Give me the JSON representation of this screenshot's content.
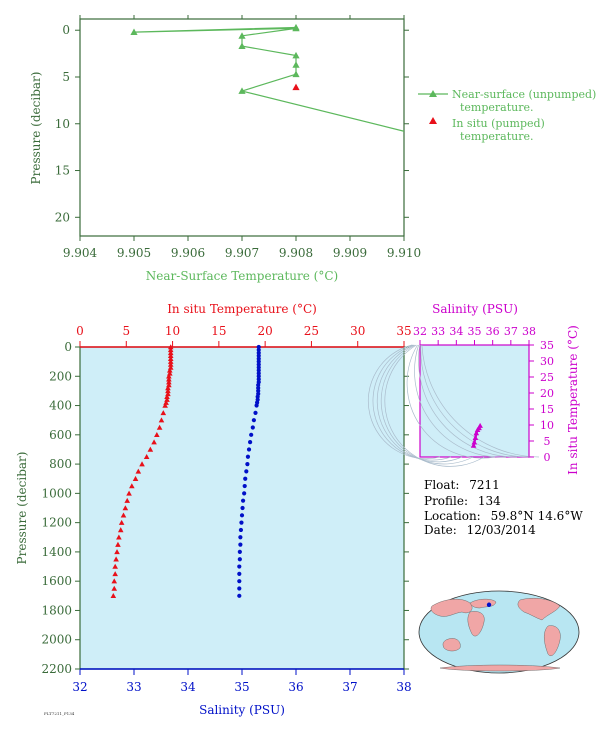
{
  "colors": {
    "near_surface": "#5cb85c",
    "axis_green": "#3a6b3a",
    "temperature": "#e8101a",
    "salinity": "#0010c8",
    "ts_magenta": "#cc00cc",
    "plot_bg": "#cfeef8"
  },
  "chart_data": [
    {
      "type": "line",
      "title": "",
      "xlabel": "Near-Surface Temperature (°C)",
      "ylabel": "Pressure (decibar)",
      "xlim": [
        9.904,
        9.91
      ],
      "ylim": [
        22,
        0
      ],
      "x_ticks": [
        "9.904",
        "9.905",
        "9.906",
        "9.907",
        "9.908",
        "9.909",
        "9.910"
      ],
      "y_ticks": [
        "0",
        "5",
        "10",
        "15",
        "20"
      ],
      "legend_position": "right",
      "series": [
        {
          "name": "Near-surface (unpumped) temperature.",
          "points": [
            [
              9.908,
              -0.3
            ],
            [
              9.905,
              0.2
            ],
            [
              9.908,
              -0.2
            ],
            [
              9.907,
              0.6
            ],
            [
              9.907,
              1.7
            ],
            [
              9.908,
              2.7
            ],
            [
              9.908,
              3.7
            ],
            [
              9.908,
              4.7
            ],
            [
              9.907,
              6.5
            ],
            [
              9.91,
              10.8
            ]
          ]
        },
        {
          "name": "In situ (pumped) temperature.",
          "points": [
            [
              9.908,
              6.1
            ]
          ]
        }
      ]
    },
    {
      "type": "scatter",
      "title": "",
      "xlabel_bottom": "Salinity (PSU)",
      "xlabel_top": "In situ Temperature (°C)",
      "ylabel": "Pressure (decibar)",
      "xlim_salinity": [
        32,
        38
      ],
      "xlim_temperature": [
        0,
        35
      ],
      "ylim": [
        2200,
        0
      ],
      "salinity_ticks": [
        "32",
        "33",
        "34",
        "35",
        "36",
        "37",
        "38"
      ],
      "temperature_ticks": [
        "0",
        "5",
        "10",
        "15",
        "20",
        "25",
        "30",
        "35"
      ],
      "pressure_ticks": [
        "0",
        "200",
        "400",
        "600",
        "800",
        "1000",
        "1200",
        "1400",
        "1600",
        "1800",
        "2000",
        "2200"
      ],
      "series": [
        {
          "name": "In situ Temperature",
          "pressure": [
            0,
            20,
            40,
            60,
            80,
            100,
            120,
            140,
            160,
            180,
            200,
            220,
            240,
            260,
            280,
            300,
            320,
            340,
            360,
            380,
            400,
            450,
            500,
            550,
            600,
            650,
            700,
            750,
            800,
            850,
            900,
            950,
            1000,
            1050,
            1100,
            1150,
            1200,
            1250,
            1300,
            1350,
            1400,
            1450,
            1500,
            1550,
            1600,
            1650,
            1700
          ],
          "values": [
            9.8,
            9.8,
            9.8,
            9.8,
            9.8,
            9.8,
            9.8,
            9.8,
            9.7,
            9.7,
            9.6,
            9.6,
            9.6,
            9.6,
            9.5,
            9.5,
            9.5,
            9.4,
            9.4,
            9.3,
            9.2,
            9.0,
            8.8,
            8.6,
            8.3,
            8.0,
            7.6,
            7.2,
            6.7,
            6.3,
            6.0,
            5.6,
            5.3,
            5.1,
            4.9,
            4.7,
            4.5,
            4.4,
            4.2,
            4.1,
            4.0,
            3.9,
            3.8,
            3.8,
            3.7,
            3.7,
            3.6
          ]
        },
        {
          "name": "Salinity",
          "pressure": [
            0,
            20,
            40,
            60,
            80,
            100,
            120,
            140,
            160,
            180,
            200,
            220,
            240,
            260,
            280,
            300,
            320,
            340,
            360,
            380,
            400,
            450,
            500,
            550,
            600,
            650,
            700,
            750,
            800,
            850,
            900,
            950,
            1000,
            1050,
            1100,
            1150,
            1200,
            1250,
            1300,
            1350,
            1400,
            1450,
            1500,
            1550,
            1600,
            1650,
            1700
          ],
          "values": [
            35.31,
            35.31,
            35.31,
            35.31,
            35.31,
            35.31,
            35.31,
            35.31,
            35.31,
            35.31,
            35.31,
            35.31,
            35.31,
            35.3,
            35.3,
            35.3,
            35.3,
            35.29,
            35.29,
            35.28,
            35.27,
            35.25,
            35.22,
            35.2,
            35.17,
            35.15,
            35.13,
            35.11,
            35.1,
            35.08,
            35.06,
            35.05,
            35.04,
            35.02,
            35.01,
            35.0,
            34.99,
            34.98,
            34.97,
            34.97,
            34.96,
            34.96,
            34.95,
            34.95,
            34.95,
            34.95,
            34.95
          ]
        }
      ]
    },
    {
      "type": "scatter",
      "title": "",
      "xlabel_top": "Salinity (PSU)",
      "ylabel_right": "In situ Temperature (°C)",
      "xlim": [
        32,
        38
      ],
      "ylim": [
        0,
        35
      ],
      "x_ticks": [
        "32",
        "33",
        "34",
        "35",
        "36",
        "37",
        "38"
      ],
      "y_ticks": [
        "0",
        "5",
        "10",
        "15",
        "20",
        "25",
        "30",
        "35"
      ],
      "series": [
        {
          "name": "T-S",
          "points": [
            [
              34.95,
              3.6
            ],
            [
              34.99,
              4.6
            ],
            [
              35.05,
              6.0
            ],
            [
              35.1,
              7.5
            ],
            [
              35.17,
              8.5
            ],
            [
              35.25,
              9.1
            ],
            [
              35.31,
              9.8
            ]
          ]
        }
      ]
    }
  ],
  "info": {
    "float_label": "Float:",
    "float_value": "7211",
    "profile_label": "Profile:",
    "profile_value": "134",
    "location_label": "Location:",
    "location_value": "59.8°N  14.6°W",
    "date_label": "Date:",
    "date_value": "12/03/2014"
  },
  "map": {
    "marker_lat": 59.8,
    "marker_lon": -14.6
  },
  "footer_text": "FLT7211_P134"
}
